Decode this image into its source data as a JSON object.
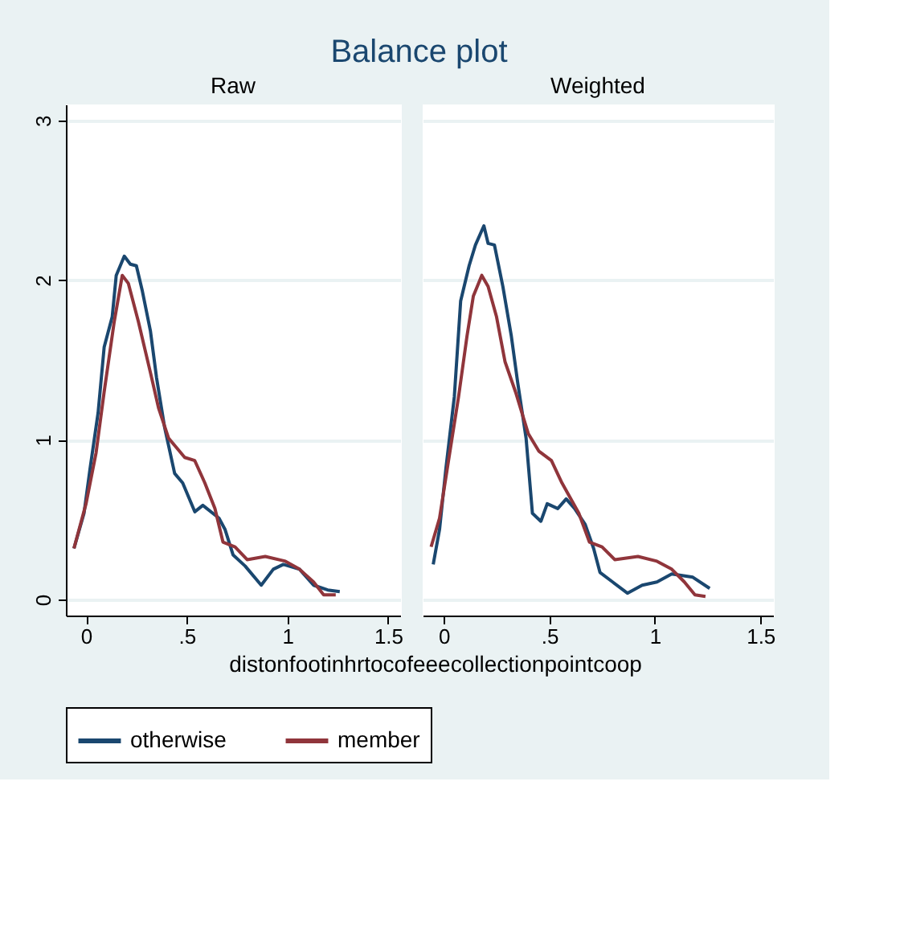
{
  "chart_data": [
    {
      "type": "line",
      "title": "Raw",
      "xlabel": "distonfootinhrtocofeeecollectionpointcoop",
      "annotations": [
        "Balance plot"
      ],
      "xlim": [
        -0.1,
        1.56
      ],
      "ylim": [
        -0.1,
        3.1
      ],
      "xticks": [
        0,
        {
          "value": 0.5,
          "label": ".5"
        },
        1,
        1.5
      ],
      "yticks": [
        0,
        1,
        2,
        3
      ],
      "grid": "y",
      "legend": "bottom",
      "line_style": "solid",
      "series": [
        {
          "name": "otherwise",
          "color": "#1a476f",
          "x": [
            -0.06,
            -0.01,
            0.02,
            0.06,
            0.09,
            0.13,
            0.15,
            0.19,
            0.22,
            0.25,
            0.28,
            0.32,
            0.35,
            0.39,
            0.44,
            0.48,
            0.54,
            0.58,
            0.66,
            0.69,
            0.73,
            0.79,
            0.87,
            0.93,
            0.98,
            1.06,
            1.13,
            1.2,
            1.26
          ],
          "values": [
            0.32,
            0.54,
            0.82,
            1.17,
            1.58,
            1.77,
            2.03,
            2.15,
            2.1,
            2.09,
            1.93,
            1.68,
            1.39,
            1.08,
            0.79,
            0.73,
            0.55,
            0.59,
            0.51,
            0.44,
            0.28,
            0.21,
            0.09,
            0.19,
            0.22,
            0.19,
            0.09,
            0.06,
            0.05
          ]
        },
        {
          "name": "member",
          "color": "#90353b",
          "x": [
            -0.06,
            0,
            0.05,
            0.09,
            0.14,
            0.18,
            0.21,
            0.26,
            0.32,
            0.36,
            0.41,
            0.45,
            0.49,
            0.54,
            0.59,
            0.64,
            0.68,
            0.74,
            0.8,
            0.89,
            0.99,
            1.06,
            1.13,
            1.18,
            1.24
          ],
          "values": [
            0.32,
            0.6,
            0.92,
            1.3,
            1.74,
            2.03,
            1.98,
            1.74,
            1.42,
            1.2,
            1.01,
            0.95,
            0.89,
            0.87,
            0.73,
            0.57,
            0.36,
            0.33,
            0.25,
            0.27,
            0.24,
            0.19,
            0.11,
            0.03,
            0.03
          ]
        }
      ]
    },
    {
      "type": "line",
      "title": "Weighted",
      "xlim": [
        -0.1,
        1.56
      ],
      "ylim": [
        -0.1,
        3.1
      ],
      "xticks": [
        0,
        {
          "value": 0.5,
          "label": ".5"
        },
        1,
        1.5
      ],
      "yticks": [
        0,
        1,
        2,
        3
      ],
      "tick_labels": "x",
      "grid": "y",
      "line_style": "solid",
      "series": [
        {
          "name": "otherwise",
          "color": "#1a476f",
          "x": [
            -0.05,
            -0.02,
            0.01,
            0.05,
            0.08,
            0.12,
            0.15,
            0.19,
            0.21,
            0.24,
            0.28,
            0.32,
            0.35,
            0.39,
            0.42,
            0.46,
            0.49,
            0.54,
            0.58,
            0.62,
            0.67,
            0.71,
            0.74,
            0.8,
            0.87,
            0.94,
            1.01,
            1.08,
            1.18,
            1.26
          ],
          "values": [
            0.22,
            0.44,
            0.82,
            1.27,
            1.87,
            2.09,
            2.22,
            2.34,
            2.23,
            2.22,
            1.96,
            1.65,
            1.36,
            1.01,
            0.54,
            0.49,
            0.6,
            0.57,
            0.63,
            0.57,
            0.47,
            0.32,
            0.17,
            0.11,
            0.04,
            0.09,
            0.11,
            0.16,
            0.14,
            0.07
          ]
        },
        {
          "name": "member",
          "color": "#90353b",
          "x": [
            -0.06,
            -0.02,
            0.02,
            0.07,
            0.11,
            0.14,
            0.18,
            0.21,
            0.25,
            0.29,
            0.34,
            0.4,
            0.45,
            0.51,
            0.56,
            0.64,
            0.69,
            0.75,
            0.81,
            0.92,
            1.01,
            1.08,
            1.14,
            1.19,
            1.24
          ],
          "values": [
            0.33,
            0.51,
            0.85,
            1.27,
            1.65,
            1.9,
            2.03,
            1.96,
            1.77,
            1.49,
            1.3,
            1.04,
            0.93,
            0.87,
            0.73,
            0.54,
            0.36,
            0.33,
            0.25,
            0.27,
            0.24,
            0.19,
            0.11,
            0.03,
            0.02
          ]
        }
      ]
    }
  ]
}
